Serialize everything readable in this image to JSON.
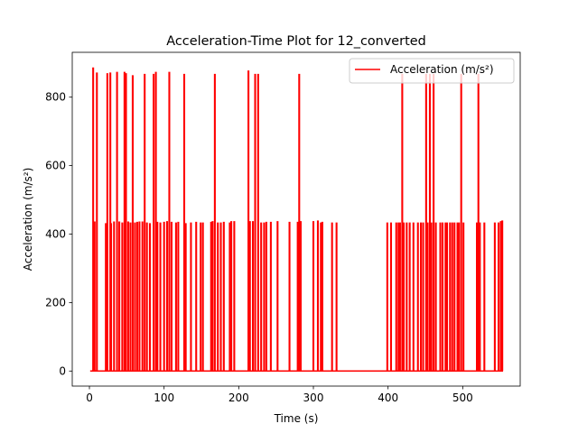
{
  "chart_data": {
    "type": "line",
    "title": "Acceleration-Time Plot for 12_converted",
    "xlabel": "Time (s)",
    "ylabel": "Acceleration (m/s²)",
    "xlim": [
      -23,
      577
    ],
    "ylim": [
      -44,
      931
    ],
    "x_ticks": [
      0,
      100,
      200,
      300,
      400,
      500
    ],
    "y_ticks": [
      0,
      200,
      400,
      600,
      800
    ],
    "grid": false,
    "legend_position": "top-right",
    "series": [
      {
        "name": "Acceleration (m/s²)",
        "color": "#ff0000",
        "spikes": [
          [
            5,
            885
          ],
          [
            7,
            435
          ],
          [
            10,
            870
          ],
          [
            22,
            430
          ],
          [
            24,
            868
          ],
          [
            28,
            870
          ],
          [
            29,
            430
          ],
          [
            33,
            435
          ],
          [
            37,
            872
          ],
          [
            40,
            435
          ],
          [
            44,
            432
          ],
          [
            47,
            872
          ],
          [
            49,
            868
          ],
          [
            52,
            435
          ],
          [
            55,
            432
          ],
          [
            58,
            862
          ],
          [
            61,
            432
          ],
          [
            64,
            434
          ],
          [
            67,
            435
          ],
          [
            71,
            435
          ],
          [
            74,
            866
          ],
          [
            77,
            432
          ],
          [
            81,
            430
          ],
          [
            86,
            866
          ],
          [
            89,
            872
          ],
          [
            91,
            434
          ],
          [
            95,
            432
          ],
          [
            100,
            434
          ],
          [
            104,
            436
          ],
          [
            107,
            872
          ],
          [
            110,
            434
          ],
          [
            116,
            432
          ],
          [
            119,
            434
          ],
          [
            127,
            866
          ],
          [
            129,
            430
          ],
          [
            136,
            432
          ],
          [
            143,
            434
          ],
          [
            149,
            432
          ],
          [
            152,
            432
          ],
          [
            163,
            434
          ],
          [
            165,
            436
          ],
          [
            168,
            866
          ],
          [
            172,
            432
          ],
          [
            176,
            432
          ],
          [
            180,
            434
          ],
          [
            188,
            432
          ],
          [
            190,
            436
          ],
          [
            194,
            436
          ],
          [
            213,
            876
          ],
          [
            215,
            436
          ],
          [
            219,
            436
          ],
          [
            222,
            866
          ],
          [
            226,
            866
          ],
          [
            230,
            432
          ],
          [
            234,
            432
          ],
          [
            237,
            434
          ],
          [
            243,
            434
          ],
          [
            252,
            436
          ],
          [
            268,
            434
          ],
          [
            279,
            434
          ],
          [
            281,
            866
          ],
          [
            283,
            436
          ],
          [
            300,
            436
          ],
          [
            306,
            438
          ],
          [
            310,
            432
          ],
          [
            312,
            434
          ],
          [
            325,
            432
          ],
          [
            331,
            432
          ],
          [
            399,
            432
          ],
          [
            404,
            432
          ],
          [
            411,
            432
          ],
          [
            414,
            432
          ],
          [
            416,
            432
          ],
          [
            419,
            866
          ],
          [
            421,
            432
          ],
          [
            425,
            432
          ],
          [
            429,
            432
          ],
          [
            434,
            432
          ],
          [
            440,
            432
          ],
          [
            444,
            432
          ],
          [
            447,
            432
          ],
          [
            451,
            866
          ],
          [
            453,
            432
          ],
          [
            456,
            866
          ],
          [
            458,
            432
          ],
          [
            461,
            866
          ],
          [
            464,
            432
          ],
          [
            470,
            432
          ],
          [
            473,
            432
          ],
          [
            477,
            432
          ],
          [
            479,
            432
          ],
          [
            483,
            432
          ],
          [
            486,
            432
          ],
          [
            489,
            432
          ],
          [
            493,
            432
          ],
          [
            495,
            432
          ],
          [
            498,
            866
          ],
          [
            501,
            432
          ],
          [
            519,
            432
          ],
          [
            521,
            866
          ],
          [
            523,
            432
          ],
          [
            529,
            432
          ],
          [
            543,
            432
          ],
          [
            548,
            432
          ],
          [
            551,
            436
          ],
          [
            553,
            438
          ]
        ]
      }
    ]
  }
}
